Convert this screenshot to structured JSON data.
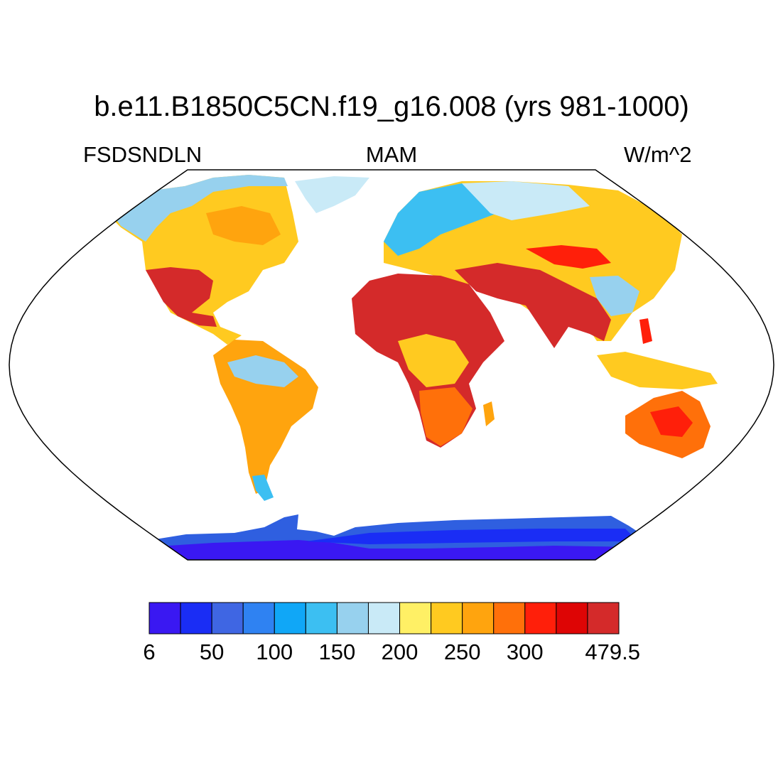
{
  "header": {
    "title": "b.e11.B1850C5CN.f19_g16.008 (yrs 981-1000)",
    "left_label": "FSDSNDLN",
    "center_label": "MAM",
    "right_label": "W/m^2"
  },
  "map": {
    "projection": "robinson",
    "variable": "FSDSNDLN",
    "season": "MAM",
    "units": "W/m^2"
  },
  "colorbar": {
    "colors": [
      "#3a18f2",
      "#1a2df5",
      "#3f66e3",
      "#2f82f2",
      "#10a7f7",
      "#3cbff2",
      "#97d1ee",
      "#c9eaf7",
      "#fff065",
      "#ffca20",
      "#ffa40e",
      "#ff700a",
      "#ff1f0a",
      "#de0505",
      "#d42a2a"
    ],
    "labels": [
      {
        "text": "6",
        "index": 0
      },
      {
        "text": "50",
        "index": 1
      },
      {
        "text": "100",
        "index": 2
      },
      {
        "text": "150",
        "index": 3
      },
      {
        "text": "200",
        "index": 4
      },
      {
        "text": "250",
        "index": 5
      },
      {
        "text": "300",
        "index": 6
      },
      {
        "text": "479.5",
        "index": 7
      }
    ]
  }
}
